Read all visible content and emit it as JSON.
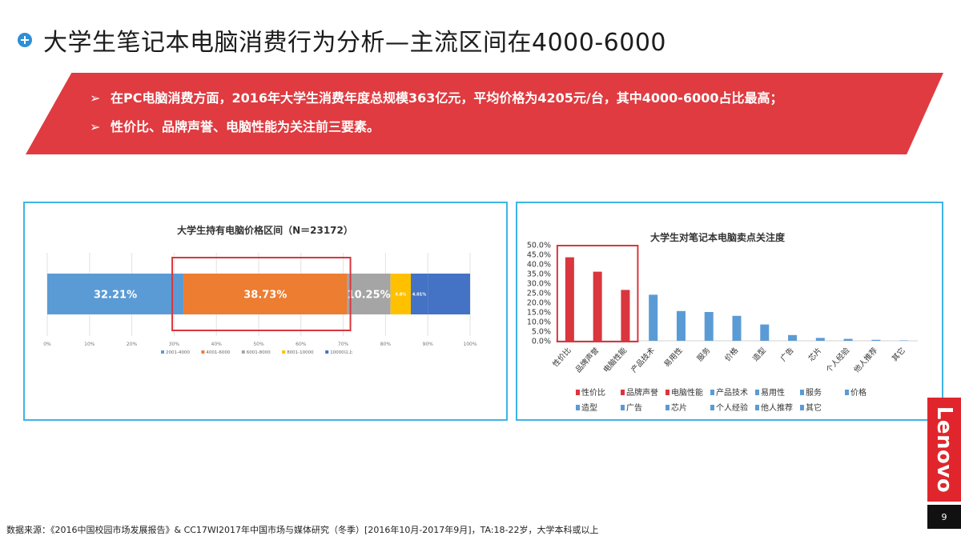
{
  "page": {
    "title": "大学生笔记本电脑消费行为分析—主流区间在4000-6000",
    "bullet_marker": "➢",
    "bullets": [
      "在PC电脑消费方面，2016年大学生消费年度总规模363亿元，平均价格为4205元/台，其中4000-6000占比最高；",
      "性价比、品牌声誉、电脑性能为关注前三要素。"
    ],
    "footer": "数据来源：《2016中国校园市场发展报告》& CC17WI2017年中国市场与媒体研究（冬季）[2016年10月-2017年9月]，TA:18-22岁，大学本科或以上",
    "brand": "Lenovo",
    "page_number": "9"
  },
  "colors": {
    "banner": "#df3b40",
    "panel_border": "#3fb3e6",
    "highlight_box": "#d9363e",
    "left_series": [
      "#5b9bd5",
      "#ed7d31",
      "#a5a5a5",
      "#ffc000",
      "#4472c4"
    ],
    "bar_highlight": "#d9363e",
    "bar_normal": "#5b9bd5"
  },
  "chart_data": [
    {
      "type": "bar",
      "orientation": "horizontal-stacked-100",
      "title": "大学生持有电脑价格区间（N＝23172）",
      "categories": [
        ""
      ],
      "series": [
        {
          "name": "2001-4000",
          "values": [
            32.21
          ],
          "label": "32.21%"
        },
        {
          "name": "4001-6000",
          "values": [
            38.73
          ],
          "label": "38.73%"
        },
        {
          "name": "6001-8000",
          "values": [
            10.25
          ],
          "label": "10.25%"
        },
        {
          "name": "8001-10000",
          "values": [
            4.8
          ],
          "label": "4.8%"
        },
        {
          "name": "10000以上",
          "values": [
            4.01
          ],
          "label": "4.01%"
        }
      ],
      "x_ticks": [
        "0%",
        "10%",
        "20%",
        "30%",
        "40%",
        "50%",
        "60%",
        "70%",
        "80%",
        "90%",
        "100%"
      ],
      "xlim": [
        0,
        100
      ],
      "grid": true,
      "legend": "bottom",
      "highlight": [
        "4001-6000"
      ]
    },
    {
      "type": "bar",
      "title": "大学生对笔记本电脑卖点关注度",
      "categories": [
        "性价比",
        "品牌声誉",
        "电脑性能",
        "产品技术",
        "易用性",
        "服务",
        "价格",
        "造型",
        "广告",
        "芯片",
        "个人经验",
        "他人推荐",
        "其它"
      ],
      "values": [
        43.5,
        36.0,
        26.5,
        24.0,
        15.5,
        15.0,
        13.0,
        8.5,
        3.0,
        1.5,
        1.0,
        0.5,
        0.2
      ],
      "y_ticks": [
        "0.0%",
        "5.0%",
        "10.0%",
        "15.0%",
        "20.0%",
        "25.0%",
        "30.0%",
        "35.0%",
        "40.0%",
        "45.0%",
        "50.0%"
      ],
      "ylim": [
        0,
        50
      ],
      "legend": "bottom",
      "highlight": [
        "性价比",
        "品牌声誉",
        "电脑性能"
      ]
    }
  ]
}
